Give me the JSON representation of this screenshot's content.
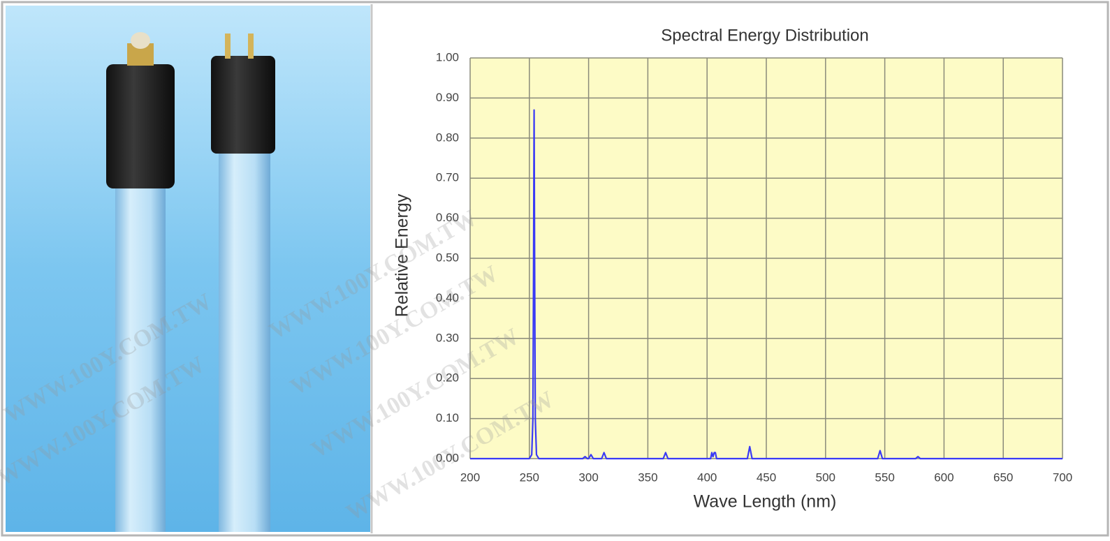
{
  "watermark": "WWW.100Y.COM.TW",
  "chart_data": {
    "type": "line",
    "title": "Spectral Energy Distribution",
    "xlabel": "Wave Length (nm)",
    "ylabel": "Relative Energy",
    "x": [
      200,
      250,
      252,
      253,
      253.5,
      254,
      254.5,
      255,
      256,
      258,
      295,
      297,
      299,
      300,
      302,
      304,
      311,
      313,
      315,
      363,
      365,
      367,
      403,
      404,
      405,
      406,
      407,
      408,
      434,
      436,
      438,
      544,
      546,
      548,
      576,
      578,
      580,
      700
    ],
    "series": [
      {
        "color": "#3a3af5",
        "values": [
          0,
          0,
          0.01,
          0.1,
          0.45,
          0.87,
          0.45,
          0.1,
          0.01,
          0,
          0,
          0.005,
          0,
          0,
          0.01,
          0,
          0,
          0.015,
          0,
          0,
          0.015,
          0,
          0,
          0.015,
          0.005,
          0.015,
          0.015,
          0,
          0,
          0.03,
          0,
          0,
          0.02,
          0,
          0,
          0.005,
          0,
          0
        ]
      }
    ],
    "xlim": [
      200,
      700
    ],
    "xticks": [
      200,
      250,
      300,
      350,
      400,
      450,
      500,
      550,
      600,
      650,
      700
    ],
    "ylim": [
      0,
      1
    ],
    "yticks": [
      {
        "value": 0,
        "label": "0.00"
      },
      {
        "value": 0.1,
        "label": "0.10"
      },
      {
        "value": 0.2,
        "label": "0.20"
      },
      {
        "value": 0.3,
        "label": "0.30"
      },
      {
        "value": 0.4,
        "label": "0.40"
      },
      {
        "value": 0.5,
        "label": "0.50"
      },
      {
        "value": 0.6,
        "label": "0.60"
      },
      {
        "value": 0.7,
        "label": "0.70"
      },
      {
        "value": 0.8,
        "label": "0.80"
      },
      {
        "value": 0.9,
        "label": "0.90"
      },
      {
        "value": 1,
        "label": "1.00"
      }
    ],
    "grid": true,
    "plot_background": "#fdfbc6"
  }
}
